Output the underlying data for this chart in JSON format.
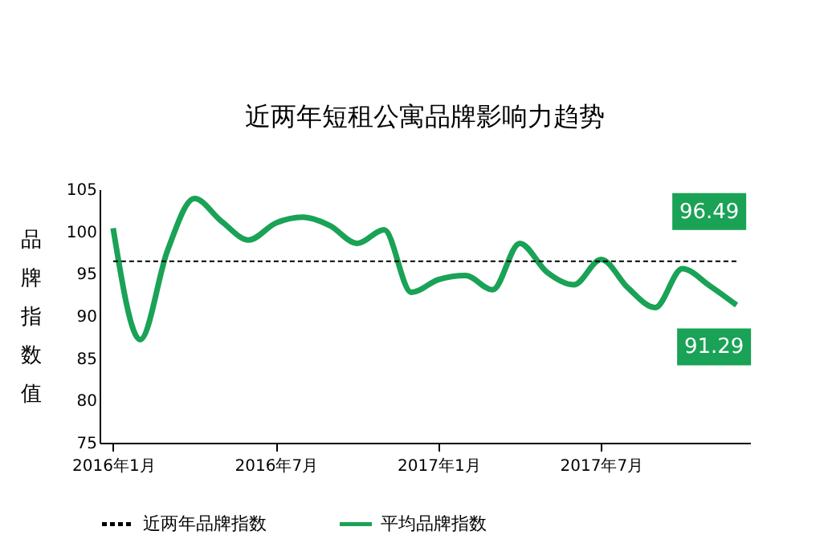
{
  "chart_data": {
    "type": "line",
    "title": "近两年短租公寓品牌影响力趋势",
    "ylabel": "品牌指数值",
    "categories": [
      "2016年1月",
      null,
      null,
      null,
      null,
      null,
      "2016年7月",
      null,
      null,
      null,
      null,
      null,
      "2017年1月",
      null,
      null,
      null,
      null,
      null,
      "2017年7月",
      null,
      null,
      null,
      null,
      null
    ],
    "series": [
      {
        "name": "平均品牌指数",
        "color": "#1aa256",
        "values": [
          100.4,
          87.2,
          97.7,
          103.9,
          101.2,
          99.0,
          101.0,
          101.7,
          100.7,
          98.6,
          100.2,
          92.8,
          94.3,
          94.8,
          93.1,
          98.6,
          95.2,
          93.7,
          96.7,
          93.3,
          91.0,
          95.6,
          93.6,
          91.29
        ],
        "value_labels": [
          null,
          null,
          null,
          null,
          null,
          null,
          null,
          null,
          null,
          null,
          null,
          null,
          null,
          null,
          null,
          null,
          null,
          null,
          null,
          null,
          null,
          null,
          null,
          "91.29"
        ]
      }
    ],
    "ylim": [
      75,
      105
    ],
    "yticks": [
      75,
      80,
      85,
      90,
      95,
      100,
      105
    ],
    "ref_lines": [
      {
        "axis": "y",
        "value": 96.49,
        "label": "近两年品牌指数",
        "color": "#000000",
        "line_style": "dashed"
      }
    ],
    "annotations": [
      "96.49"
    ],
    "legend": "bottom",
    "grid": false,
    "marker": "none",
    "line_style": "solid"
  }
}
